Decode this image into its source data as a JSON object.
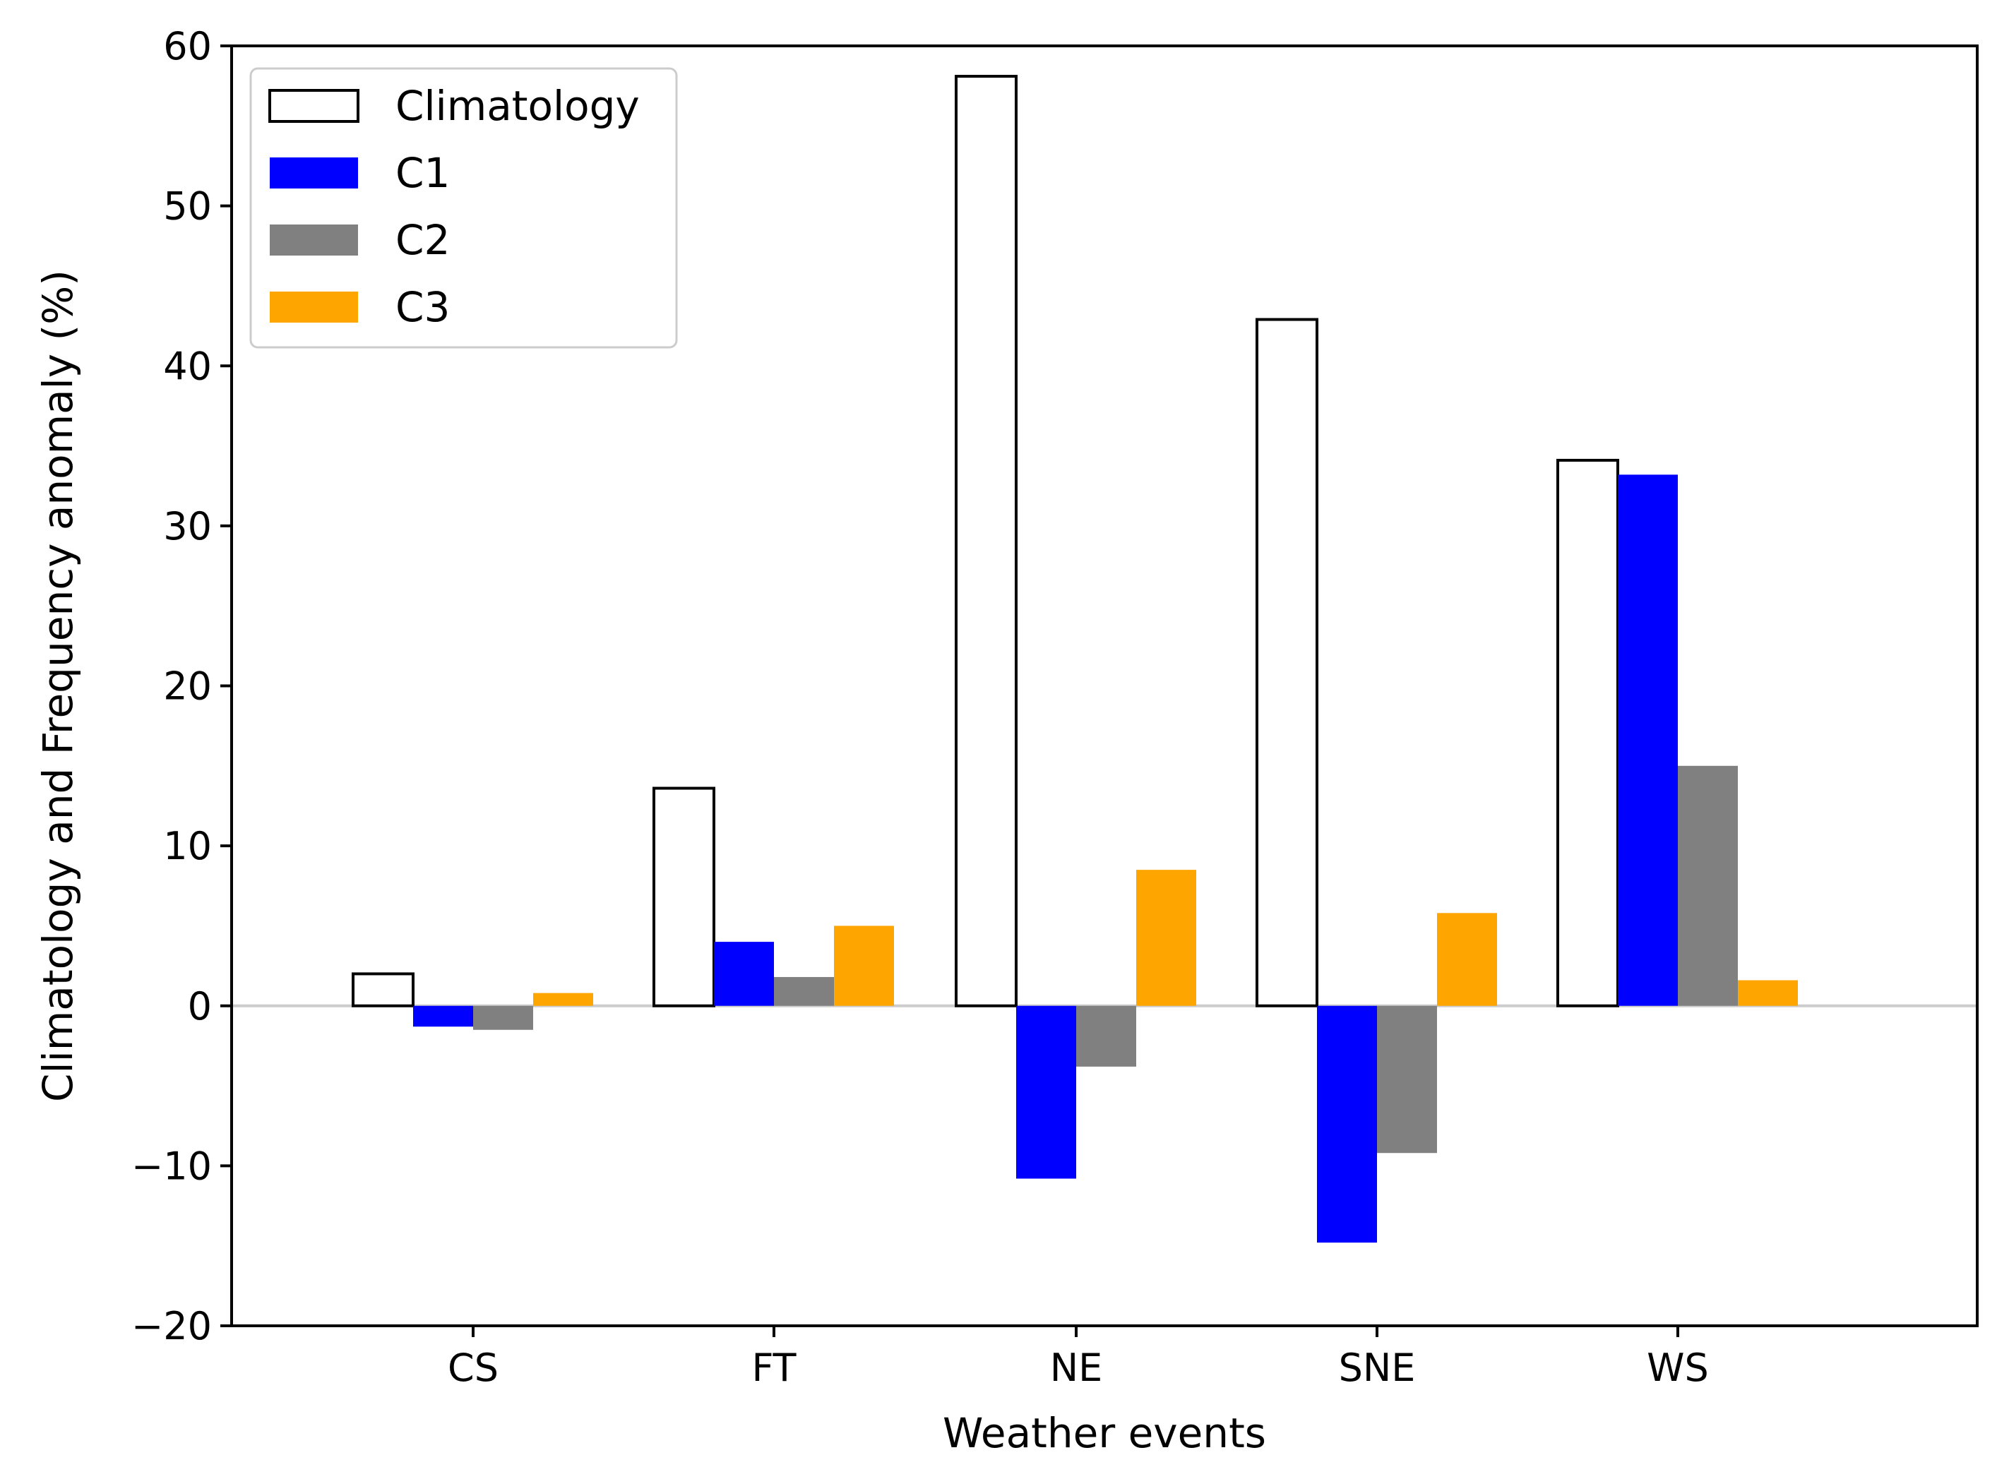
{
  "chart_data": {
    "type": "bar",
    "title": "",
    "xlabel": "Weather events",
    "ylabel": "Climatology and Frequency anomaly (%)",
    "ylim": [
      -20,
      60
    ],
    "yticks": [
      -20,
      -10,
      0,
      10,
      20,
      30,
      40,
      50,
      60
    ],
    "ytick_labels": [
      "−20",
      "−10",
      "0",
      "10",
      "20",
      "30",
      "40",
      "50",
      "60"
    ],
    "categories": [
      "CS",
      "FT",
      "NE",
      "SNE",
      "WS"
    ],
    "series": [
      {
        "name": "Climatology",
        "fill": "#ffffff",
        "edge": "#000000",
        "values": [
          2.0,
          13.6,
          58.1,
          42.9,
          34.1
        ]
      },
      {
        "name": "C1",
        "fill": "#0000ff",
        "edge": "none",
        "values": [
          -1.3,
          4.0,
          -10.8,
          -14.8,
          33.2
        ]
      },
      {
        "name": "C2",
        "fill": "#808080",
        "edge": "none",
        "values": [
          -1.5,
          1.8,
          -3.8,
          -9.2,
          15.0
        ]
      },
      {
        "name": "C3",
        "fill": "#ffa500",
        "edge": "none",
        "values": [
          0.8,
          5.0,
          8.5,
          5.8,
          1.6
        ]
      }
    ],
    "legend": "top-left",
    "zero_line": true,
    "grid": false
  }
}
